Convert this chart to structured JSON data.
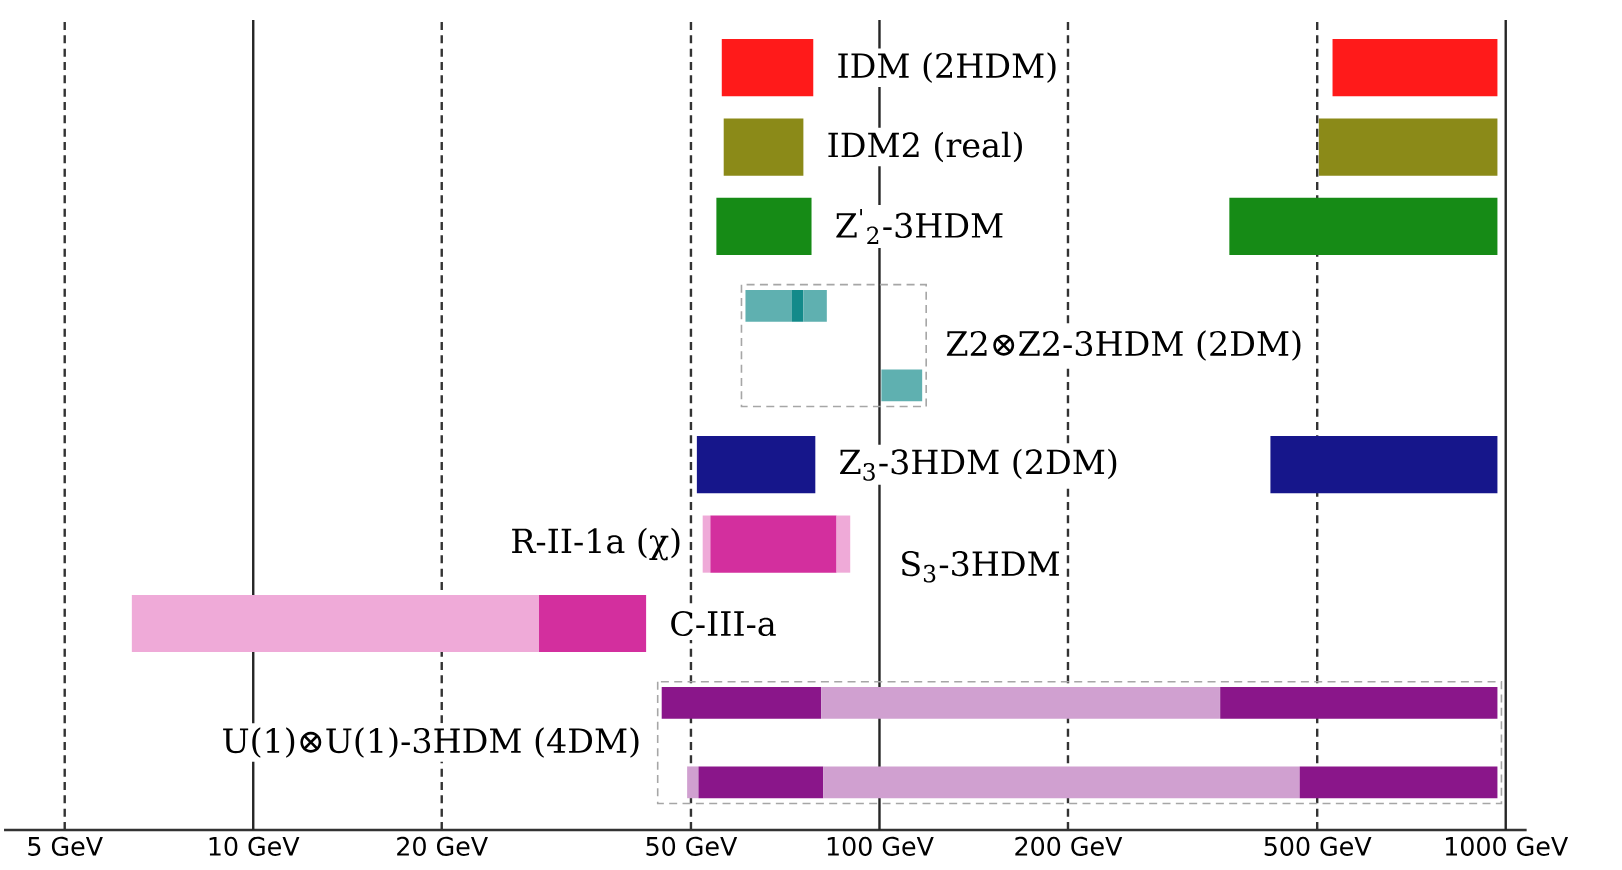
{
  "chart_data": {
    "type": "bar",
    "orientation": "horizontal",
    "log": "x",
    "grid": "x",
    "categories": [
      "IDM (2HDM)",
      "IDM2 (real)",
      "Z$^{'}$$_{2}$-3HDM",
      "Z2⊗Z2-3HDM (2DM)",
      null,
      "Z$_{3}$-3HDM (2DM)",
      "R-II-1a (χ)",
      "C-III-a",
      "U(1)⊗U(1)-3HDM (4DM)",
      null
    ],
    "xlim": [
      4,
      1080
    ],
    "xticks": [
      {
        "value": 5,
        "label": "5 GeV"
      },
      {
        "value": 10,
        "label": "10 GeV"
      },
      {
        "value": 20,
        "label": "20 GeV"
      },
      {
        "value": 50,
        "label": "50 GeV"
      },
      {
        "value": 100,
        "label": "100 GeV"
      },
      {
        "value": 200,
        "label": "200 GeV"
      },
      {
        "value": 500,
        "label": "500 GeV"
      },
      {
        "value": 1000,
        "label": "1000 GeV"
      }
    ],
    "annotations": [
      "S$_{3}$-3HDM"
    ],
    "series": [
      {
        "base": [
          56.0,
          56.4,
          54.9,
          61.1,
          100.7,
          51.1,
          52.2,
          6.4,
          44.9,
          49.3
        ],
        "values": [
          22.4,
          19.2,
          23.0,
          11.4,
          16.3,
          27.9,
          1.5,
          22.2,
          35.8,
          2.1
        ],
        "colors": [
          "#ff1a1a",
          "#8b8a18",
          "#168b16",
          "#5fb0b0",
          "#5fb0b0",
          "#16168b",
          "#efaad8",
          "#efaad8",
          "#8a168a",
          "#d0a0d0"
        ]
      },
      {
        "base": [
          529,
          503,
          362,
          72.5,
          null,
          421,
          53.7,
          28.6,
          80.7,
          51.4
        ],
        "values": [
          441,
          467,
          608,
          3.1,
          null,
          549,
          31.7,
          13.8,
          269,
          29.9
        ],
        "colors": [
          "#ff1a1a",
          "#8b8a18",
          "#168b16",
          "#138a8a",
          null,
          "#16168b",
          "#d32f9e",
          "#d32f9e",
          "#d0a0d0",
          "#8a168a"
        ]
      },
      {
        "base": [
          null,
          null,
          null,
          75.6,
          null,
          null,
          85.4,
          null,
          350,
          81.3
        ],
        "values": [
          null,
          null,
          null,
          6.8,
          null,
          null,
          4.4,
          null,
          620,
          388
        ],
        "colors": [
          null,
          null,
          null,
          "#5fb0b0",
          null,
          null,
          "#efaad8",
          null,
          "#8a168a",
          "#d0a0d0"
        ]
      },
      {
        "base": [
          null,
          null,
          null,
          null,
          null,
          null,
          null,
          null,
          null,
          469
        ],
        "values": [
          null,
          null,
          null,
          null,
          null,
          null,
          null,
          null,
          null,
          501
        ],
        "colors": [
          null,
          null,
          null,
          null,
          null,
          null,
          null,
          null,
          null,
          "#8a168a"
        ]
      }
    ]
  }
}
